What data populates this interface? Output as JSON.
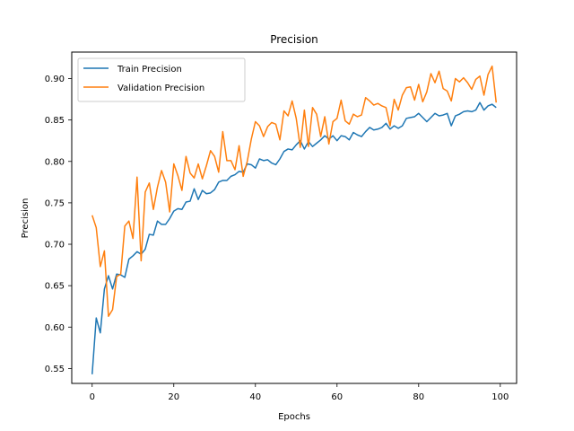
{
  "chart_data": {
    "type": "line",
    "title": "Precision",
    "xlabel": "Epochs",
    "ylabel": "Precision",
    "xlim": [
      -5,
      104
    ],
    "ylim": [
      0.532,
      0.932
    ],
    "xticks": [
      0,
      20,
      40,
      60,
      80,
      100
    ],
    "yticks": [
      0.55,
      0.6,
      0.65,
      0.7,
      0.75,
      0.8,
      0.85,
      0.9
    ],
    "ytick_labels": [
      "0.55",
      "0.60",
      "0.65",
      "0.70",
      "0.75",
      "0.80",
      "0.85",
      "0.90"
    ],
    "grid": false,
    "legend_position": "top-left",
    "x": [
      0,
      1,
      2,
      3,
      4,
      5,
      6,
      7,
      8,
      9,
      10,
      11,
      12,
      13,
      14,
      15,
      16,
      17,
      18,
      19,
      20,
      21,
      22,
      23,
      24,
      25,
      26,
      27,
      28,
      29,
      30,
      31,
      32,
      33,
      34,
      35,
      36,
      37,
      38,
      39,
      40,
      41,
      42,
      43,
      44,
      45,
      46,
      47,
      48,
      49,
      50,
      51,
      52,
      53,
      54,
      55,
      56,
      57,
      58,
      59,
      60,
      61,
      62,
      63,
      64,
      65,
      66,
      67,
      68,
      69,
      70,
      71,
      72,
      73,
      74,
      75,
      76,
      77,
      78,
      79,
      80,
      81,
      82,
      83,
      84,
      85,
      86,
      87,
      88,
      89,
      90,
      91,
      92,
      93,
      94,
      95,
      96,
      97,
      98,
      99
    ],
    "series": [
      {
        "name": "Train Precision",
        "color": "#1f77b4",
        "values": [
          0.543,
          0.611,
          0.593,
          0.646,
          0.662,
          0.646,
          0.664,
          0.663,
          0.66,
          0.682,
          0.686,
          0.691,
          0.688,
          0.694,
          0.712,
          0.711,
          0.728,
          0.724,
          0.724,
          0.731,
          0.74,
          0.743,
          0.742,
          0.751,
          0.752,
          0.767,
          0.754,
          0.765,
          0.761,
          0.762,
          0.766,
          0.775,
          0.777,
          0.777,
          0.782,
          0.784,
          0.788,
          0.787,
          0.797,
          0.796,
          0.792,
          0.803,
          0.801,
          0.802,
          0.798,
          0.796,
          0.803,
          0.812,
          0.815,
          0.814,
          0.82,
          0.825,
          0.815,
          0.824,
          0.818,
          0.822,
          0.826,
          0.831,
          0.827,
          0.831,
          0.825,
          0.831,
          0.83,
          0.826,
          0.835,
          0.832,
          0.83,
          0.836,
          0.841,
          0.838,
          0.839,
          0.841,
          0.846,
          0.839,
          0.843,
          0.84,
          0.843,
          0.852,
          0.853,
          0.854,
          0.858,
          0.853,
          0.848,
          0.853,
          0.858,
          0.855,
          0.856,
          0.858,
          0.843,
          0.855,
          0.857,
          0.86,
          0.861,
          0.86,
          0.862,
          0.871,
          0.862,
          0.867,
          0.869,
          0.865
        ]
      },
      {
        "name": "Validation Precision",
        "color": "#ff7f0e",
        "values": [
          0.735,
          0.72,
          0.673,
          0.692,
          0.613,
          0.621,
          0.661,
          0.664,
          0.722,
          0.728,
          0.707,
          0.781,
          0.68,
          0.763,
          0.774,
          0.742,
          0.769,
          0.789,
          0.775,
          0.739,
          0.797,
          0.783,
          0.765,
          0.806,
          0.786,
          0.78,
          0.797,
          0.779,
          0.795,
          0.813,
          0.806,
          0.787,
          0.836,
          0.801,
          0.801,
          0.79,
          0.819,
          0.782,
          0.8,
          0.827,
          0.848,
          0.843,
          0.83,
          0.842,
          0.847,
          0.845,
          0.826,
          0.861,
          0.855,
          0.873,
          0.852,
          0.817,
          0.862,
          0.818,
          0.865,
          0.857,
          0.83,
          0.854,
          0.821,
          0.848,
          0.852,
          0.874,
          0.849,
          0.845,
          0.857,
          0.854,
          0.856,
          0.877,
          0.873,
          0.868,
          0.87,
          0.867,
          0.865,
          0.843,
          0.875,
          0.862,
          0.88,
          0.889,
          0.89,
          0.874,
          0.893,
          0.872,
          0.884,
          0.906,
          0.895,
          0.909,
          0.888,
          0.885,
          0.873,
          0.9,
          0.896,
          0.901,
          0.895,
          0.887,
          0.899,
          0.903,
          0.88,
          0.905,
          0.915,
          0.871
        ]
      }
    ]
  }
}
